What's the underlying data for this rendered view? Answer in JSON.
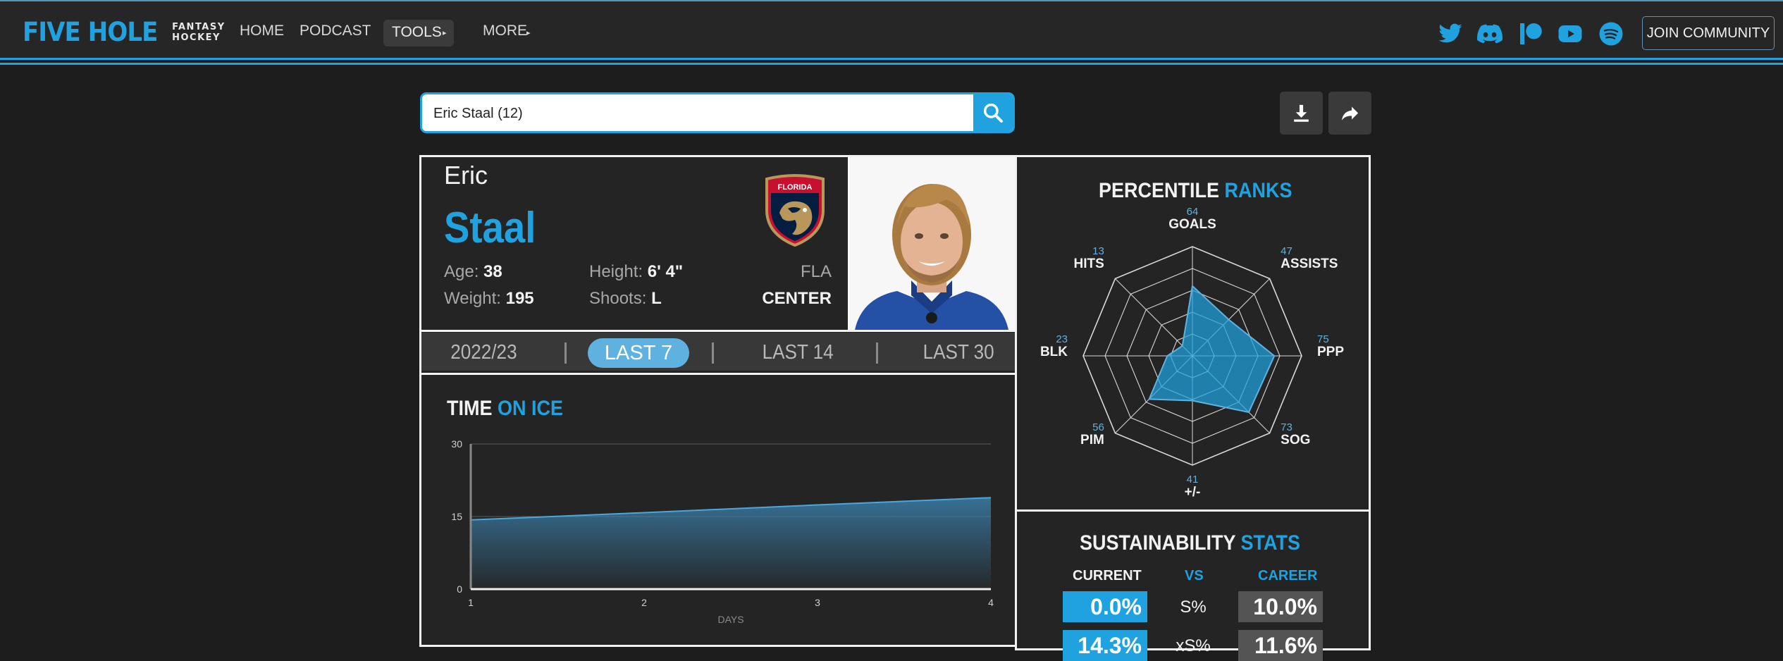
{
  "nav": {
    "logo_main": "FIVE HOLE",
    "logo_sub_1": "FANTASY",
    "logo_sub_2": "HOCKEY",
    "items": [
      "HOME",
      "PODCAST",
      "TOOLS",
      "MORE"
    ],
    "social": [
      "twitter-icon",
      "discord-icon",
      "patreon-icon",
      "youtube-icon",
      "spotify-icon"
    ],
    "join_label": "JOIN COMMUNITY"
  },
  "search": {
    "value": "Eric Staal (12)"
  },
  "player": {
    "first_name": "Eric",
    "last_name": "Staal",
    "age_label": "Age:",
    "age": "38",
    "weight_label": "Weight:",
    "weight": "195",
    "height_label": "Height:",
    "height": "6' 4\"",
    "shoots_label": "Shoots:",
    "shoots": "L",
    "team": "FLA",
    "team_logo_text": "FLORIDA",
    "position": "CENTER"
  },
  "tabs": [
    "2022/23",
    "LAST 7",
    "LAST 14",
    "LAST 30"
  ],
  "active_tab": "LAST 7",
  "toi": {
    "title_1": "TIME",
    "title_2": "ON ICE",
    "xlabel": "DAYS"
  },
  "percentile": {
    "title_1": "PERCENTILE",
    "title_2": "RANKS"
  },
  "sustainability": {
    "title_1": "SUSTAINABILITY",
    "title_2": "STATS",
    "col_current": "CURRENT",
    "col_vs": "VS",
    "col_career": "CAREER",
    "rows": [
      {
        "current": "0.0%",
        "label": "S%",
        "career": "10.0%"
      },
      {
        "current": "14.3%",
        "label": "xS%",
        "career": "11.6%"
      }
    ]
  },
  "colors": {
    "accent": "#1fa2df",
    "panel": "#242424",
    "background": "#1d1d1d"
  },
  "chart_data": [
    {
      "type": "area",
      "title": "TIME ON ICE",
      "xlabel": "DAYS",
      "ylabel": "",
      "x": [
        1,
        2,
        3,
        4
      ],
      "values": [
        14.3,
        15.8,
        17.4,
        18.9
      ],
      "xticks": [
        "1",
        "2",
        "3",
        "4"
      ],
      "yticks": [
        0,
        15,
        30
      ],
      "ylim": [
        0,
        30
      ],
      "grid": true
    },
    {
      "type": "radar",
      "title": "PERCENTILE RANKS",
      "categories": [
        "GOALS",
        "ASSISTS",
        "PPP",
        "SOG",
        "+/-",
        "PIM",
        "BLK",
        "HITS"
      ],
      "values": [
        64,
        47,
        75,
        73,
        41,
        56,
        23,
        13
      ],
      "ylim": [
        0,
        100
      ]
    }
  ]
}
